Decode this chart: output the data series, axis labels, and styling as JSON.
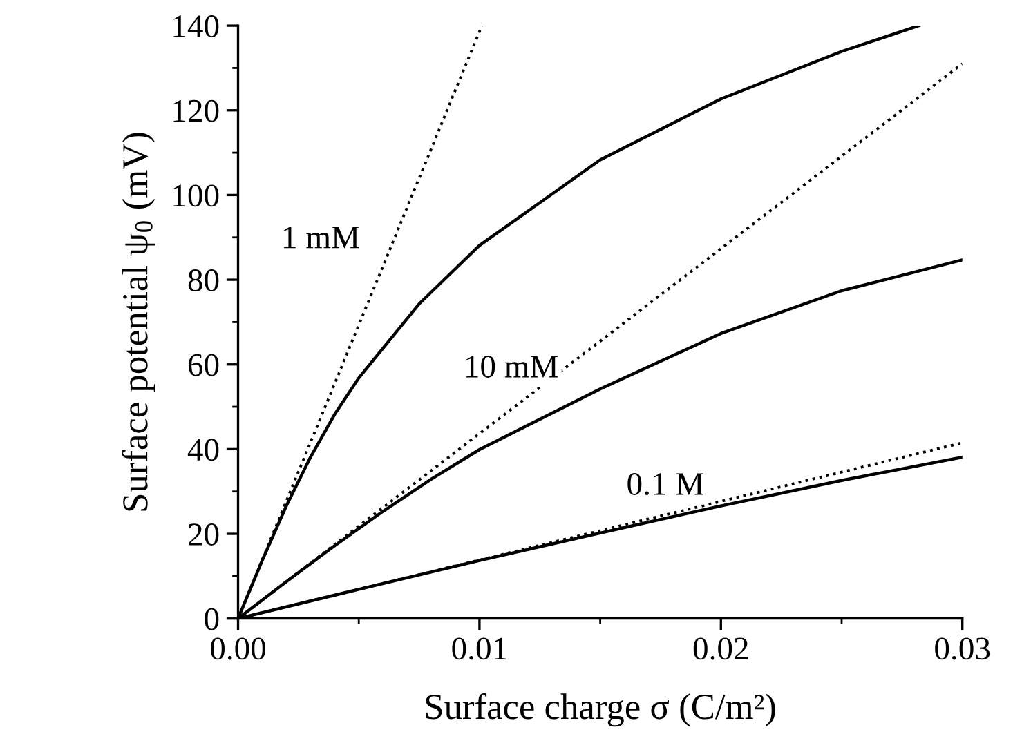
{
  "chart_data": {
    "type": "line",
    "xlabel": "Surface charge σ (C/m²)",
    "ylabel": "Surface potential ψ$_{0}$ (mV)",
    "series": [
      {
        "color": "#000000",
        "line_style": "solid",
        "x": [
          0,
          0.001,
          0.002,
          0.003,
          0.004,
          0.005,
          0.0075,
          0.01,
          0.015,
          0.02,
          0.025,
          0.0282
        ],
        "values": [
          0,
          13.7,
          26.6,
          38.1,
          48.2,
          56.8,
          74.3,
          88.1,
          108.3,
          122.7,
          133.9,
          140
        ]
      },
      {
        "color": "#000000",
        "line_style": "dotted",
        "x": [
          0,
          0.0101
        ],
        "values": [
          0,
          140
        ]
      },
      {
        "color": "#000000",
        "line_style": "solid",
        "x": [
          0,
          0.002,
          0.004,
          0.006,
          0.008,
          0.01,
          0.015,
          0.02,
          0.025,
          0.03
        ],
        "values": [
          0,
          8.7,
          17.2,
          25.3,
          32.9,
          39.9,
          54.2,
          67.3,
          77.4,
          84.7
        ]
      },
      {
        "color": "#000000",
        "line_style": "dotted",
        "x": [
          0,
          0.03
        ],
        "values": [
          0,
          131
        ]
      },
      {
        "color": "#000000",
        "line_style": "solid",
        "x": [
          0,
          0.005,
          0.01,
          0.015,
          0.02,
          0.025,
          0.03
        ],
        "values": [
          0,
          6.9,
          13.7,
          20.2,
          26.6,
          32.6,
          38.1
        ]
      },
      {
        "color": "#000000",
        "line_style": "dotted",
        "x": [
          0,
          0.03
        ],
        "values": [
          0,
          41.5
        ]
      }
    ],
    "annotations": [
      "1 mM",
      "10 mM",
      "0.1 M"
    ],
    "xlim": [
      0,
      0.03
    ],
    "xticks": [
      {
        "value": 0,
        "label": "0.00"
      },
      {
        "value": 0.01,
        "label": "0.01"
      },
      {
        "value": 0.02,
        "label": "0.02"
      },
      {
        "value": 0.03,
        "label": "0.03"
      }
    ],
    "ylim": [
      0,
      140
    ],
    "yticks": [
      0,
      20,
      40,
      60,
      80,
      100,
      120,
      140
    ],
    "grid": false,
    "legend": false,
    "marker": "none"
  }
}
